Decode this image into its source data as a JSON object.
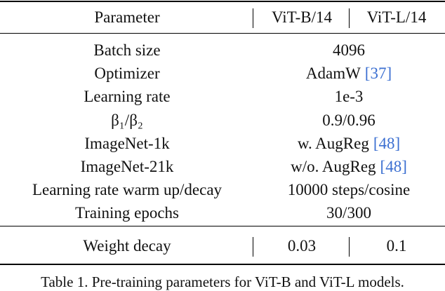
{
  "table": {
    "header": [
      "Parameter",
      "ViT-B/14",
      "ViT-L/14"
    ],
    "rows": [
      {
        "parameter": "Batch size",
        "value": "4096"
      },
      {
        "parameter": "Optimizer",
        "value": "AdamW",
        "cite": "[37]"
      },
      {
        "parameter": "Learning rate",
        "value": "1e-3"
      },
      {
        "parameter": "β₁/β₂",
        "value": "0.9/0.96"
      },
      {
        "parameter": "ImageNet-1k",
        "value": "w. AugReg",
        "cite": "[48]"
      },
      {
        "parameter": "ImageNet-21k",
        "value": "w/o. AugReg",
        "cite": "[48]"
      },
      {
        "parameter": "Learning rate warm up/decay",
        "value": "10000 steps/cosine"
      },
      {
        "parameter": "Training epochs",
        "value": "30/300"
      }
    ],
    "last_row": {
      "parameter": "Weight decay",
      "values": [
        "0.03",
        "0.1"
      ]
    }
  },
  "caption": "Table 1. Pre-training parameters for ViT-B and ViT-L models."
}
